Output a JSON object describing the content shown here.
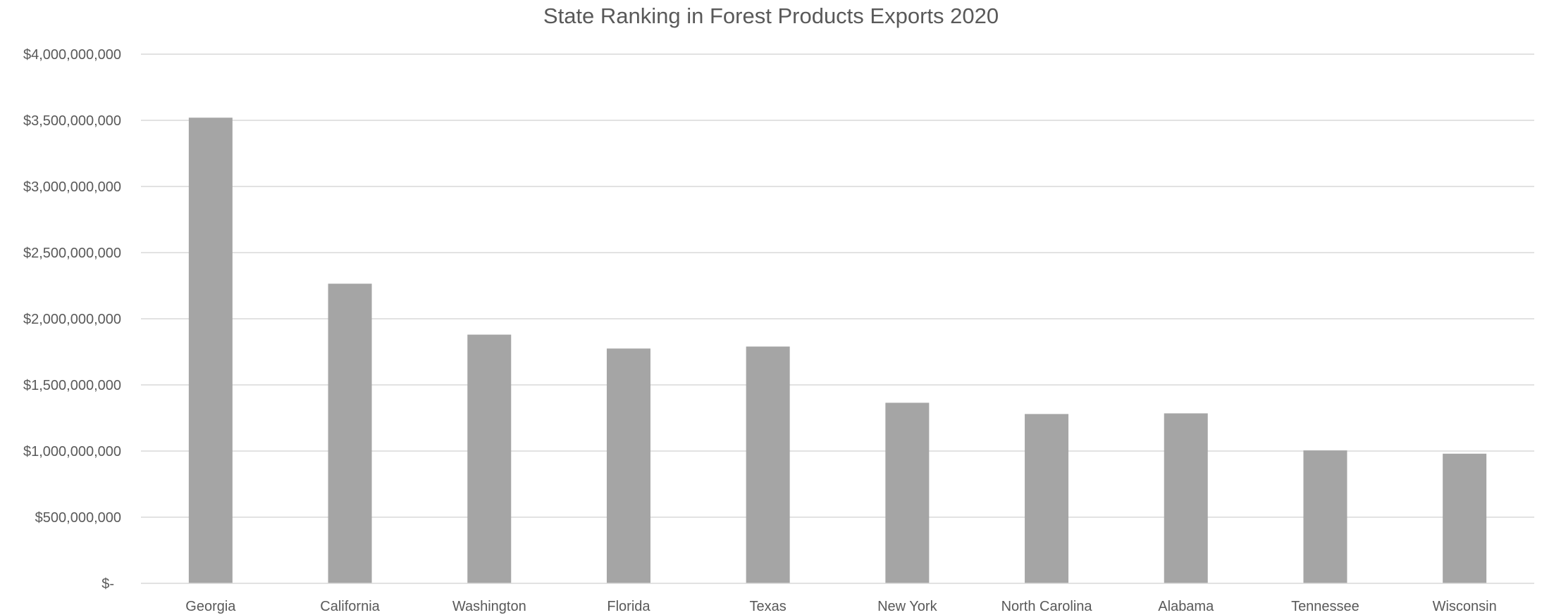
{
  "chart_data": {
    "type": "bar",
    "title": "State Ranking in Forest Products Exports 2020",
    "xlabel": "",
    "ylabel": "",
    "categories": [
      "Georgia",
      "California",
      "Washington",
      "Florida",
      "Texas",
      "New York",
      "North Carolina",
      "Alabama",
      "Tennessee",
      "Wisconsin"
    ],
    "values": [
      3520000000,
      2265000000,
      1880000000,
      1775000000,
      1790000000,
      1365000000,
      1280000000,
      1285000000,
      1005000000,
      980000000
    ],
    "ylim": [
      0,
      4000000000
    ],
    "yticks": [
      0,
      500000000,
      1000000000,
      1500000000,
      2000000000,
      2500000000,
      3000000000,
      3500000000,
      4000000000
    ],
    "ytick_labels": [
      "$-",
      "$500,000,000",
      "$1,000,000,000",
      "$1,500,000,000",
      "$2,000,000,000",
      "$2,500,000,000",
      "$3,000,000,000",
      "$3,500,000,000",
      "$4,000,000,000"
    ],
    "grid": true,
    "legend": "none",
    "bar_color": "#a5a5a5",
    "grid_color": "#d9d9d9",
    "text_color": "#595959"
  }
}
